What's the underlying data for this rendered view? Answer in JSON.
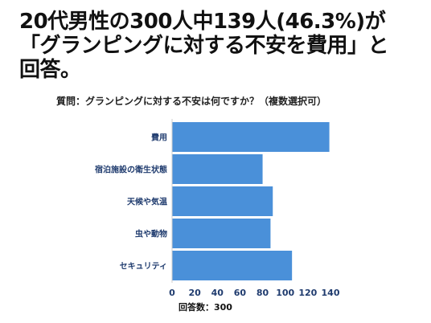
{
  "headline": {
    "line1": "20代男性の300人中139人(46.3%)が",
    "line2": "「グランピングに対する不安を費用」と",
    "line3": "回答。"
  },
  "chart_data": {
    "type": "bar",
    "orientation": "horizontal",
    "title": "質問：グランピングに対する不安は何ですか？（複数選択可）",
    "categories": [
      "費用",
      "宿泊施設の衛生状態",
      "天候や気温",
      "虫や動物",
      "セキュリティ"
    ],
    "values": [
      139,
      80,
      89,
      87,
      106
    ],
    "xlim": [
      0,
      140
    ],
    "xticks": [
      0,
      20,
      40,
      60,
      80,
      100,
      120,
      140
    ],
    "footnote": "回答数：300",
    "bar_color": "#4a90d9",
    "grid": false
  }
}
